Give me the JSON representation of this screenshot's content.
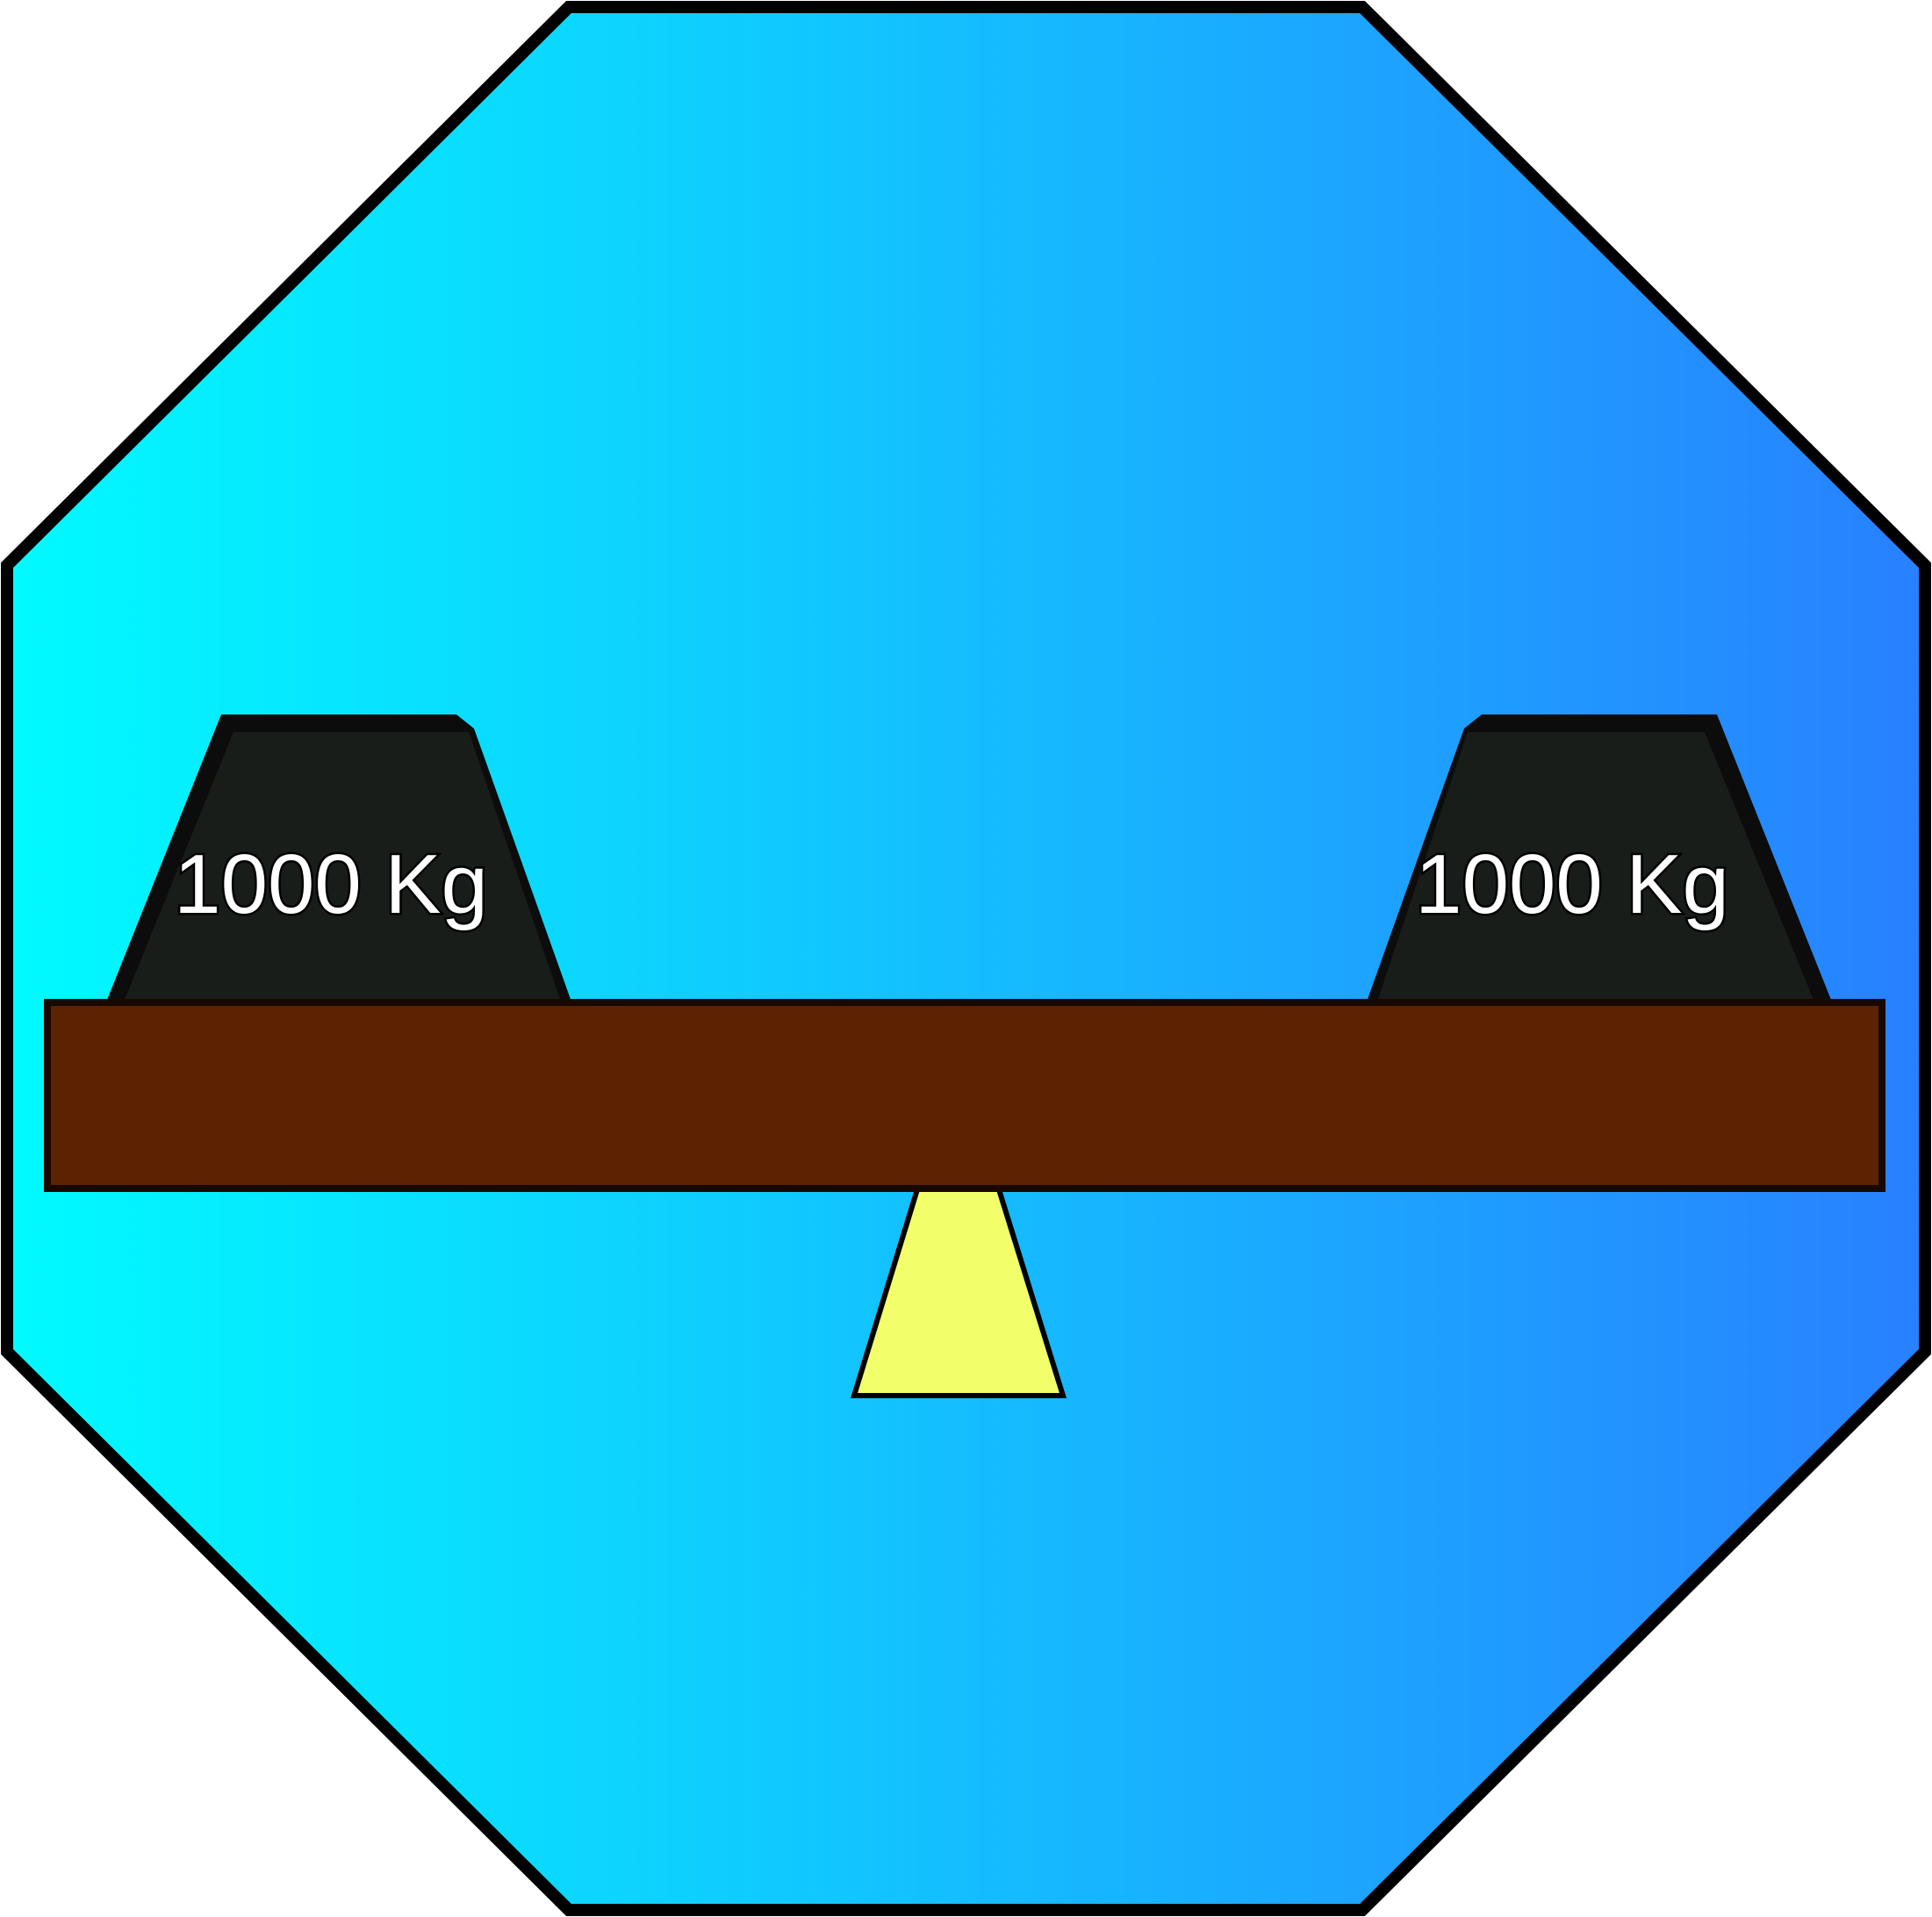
{
  "scene": {
    "description_free": true,
    "colors": {
      "background_gradient_start": "#00fbff",
      "background_gradient_end": "#2880ff",
      "outline": "#000000",
      "beam_fill": "#5c2303",
      "weight_fill": "#191d1a",
      "weight_outline": "#0c0c0c",
      "fulcrum_fill": "#f3ff6a"
    },
    "weights": [
      {
        "label": "1000 Kg"
      },
      {
        "label": "1000 Kg"
      }
    ],
    "icons": {
      "background": "octagon-badge",
      "beam": "seesaw-beam-icon",
      "fulcrum": "fulcrum-triangle-icon",
      "weight": "weight-block-icon"
    }
  }
}
